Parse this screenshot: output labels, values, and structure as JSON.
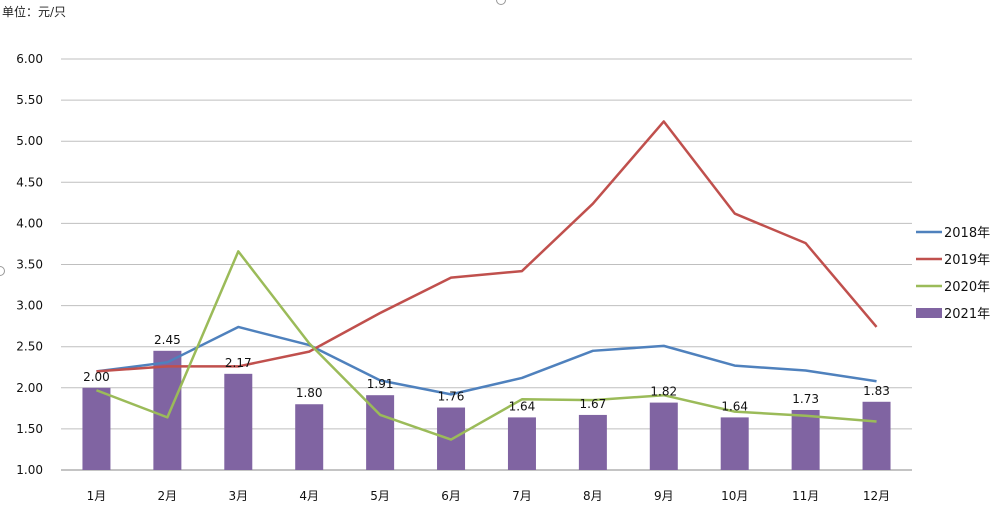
{
  "unit_label": "单位：元/只",
  "chart_data": {
    "type": "bar",
    "ylim": [
      1.0,
      6.0
    ],
    "yticks": [
      "1.00",
      "1.50",
      "2.00",
      "2.50",
      "3.00",
      "3.50",
      "4.00",
      "4.50",
      "5.00",
      "5.50",
      "6.00"
    ],
    "grid": true,
    "legend_position": "right",
    "categories": [
      "1月",
      "2月",
      "3月",
      "4月",
      "5月",
      "6月",
      "7月",
      "8月",
      "9月",
      "10月",
      "11月",
      "12月"
    ],
    "series": [
      {
        "name": "2018年",
        "kind": "line",
        "color": "#4F81BD",
        "values": [
          2.2,
          2.31,
          2.74,
          2.52,
          2.09,
          1.92,
          2.12,
          2.45,
          2.51,
          2.27,
          2.21,
          2.08
        ]
      },
      {
        "name": "2019年",
        "kind": "line",
        "color": "#C0504D",
        "values": [
          2.2,
          2.26,
          2.26,
          2.44,
          2.91,
          3.34,
          3.42,
          4.24,
          5.24,
          4.12,
          3.76,
          2.74
        ]
      },
      {
        "name": "2020年",
        "kind": "line",
        "color": "#9BBB59",
        "values": [
          1.97,
          1.64,
          3.66,
          2.54,
          1.67,
          1.37,
          1.86,
          1.85,
          1.91,
          1.71,
          1.66,
          1.59
        ]
      },
      {
        "name": "2021年",
        "kind": "bar",
        "color": "#8064A2",
        "values": [
          2.0,
          2.45,
          2.17,
          1.8,
          1.91,
          1.76,
          1.64,
          1.67,
          1.82,
          1.64,
          1.73,
          1.83
        ],
        "labels": [
          "2.00",
          "2.45",
          "2.17",
          "1.80",
          "1.91",
          "1.76",
          "1.64",
          "1.67",
          "1.82",
          "1.64",
          "1.73",
          "1.83"
        ]
      }
    ]
  }
}
